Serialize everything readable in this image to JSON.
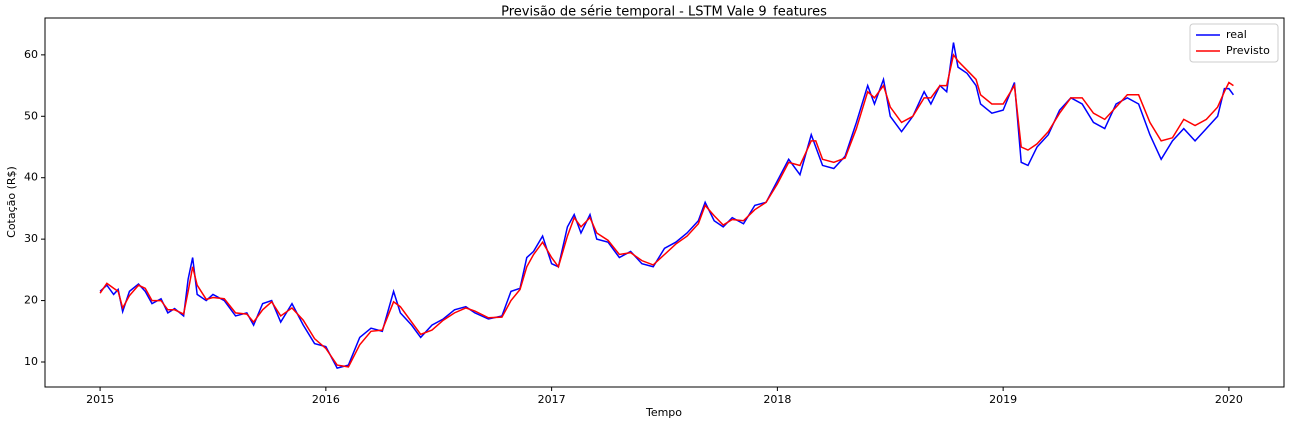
{
  "chart_data": {
    "type": "line",
    "title": "Previsão de série temporal - LSTM Vale 9_features",
    "x_label": "Tempo",
    "y_label": "Cotação (R$)",
    "x": [
      2015.0,
      2015.03,
      2015.06,
      2015.08,
      2015.1,
      2015.13,
      2015.17,
      2015.2,
      2015.23,
      2015.27,
      2015.3,
      2015.33,
      2015.37,
      2015.39,
      2015.41,
      2015.43,
      2015.47,
      2015.5,
      2015.55,
      2015.6,
      2015.65,
      2015.68,
      2015.72,
      2015.76,
      2015.8,
      2015.85,
      2015.9,
      2015.95,
      2016.0,
      2016.05,
      2016.1,
      2016.15,
      2016.2,
      2016.25,
      2016.3,
      2016.33,
      2016.38,
      2016.42,
      2016.47,
      2016.52,
      2016.57,
      2016.62,
      2016.66,
      2016.72,
      2016.78,
      2016.82,
      2016.86,
      2016.89,
      2016.92,
      2016.96,
      2017.0,
      2017.03,
      2017.07,
      2017.1,
      2017.13,
      2017.17,
      2017.2,
      2017.25,
      2017.3,
      2017.35,
      2017.4,
      2017.45,
      2017.5,
      2017.55,
      2017.6,
      2017.65,
      2017.68,
      2017.72,
      2017.76,
      2017.8,
      2017.85,
      2017.9,
      2017.95,
      2018.0,
      2018.05,
      2018.1,
      2018.15,
      2018.17,
      2018.2,
      2018.25,
      2018.3,
      2018.35,
      2018.4,
      2018.43,
      2018.47,
      2018.5,
      2018.55,
      2018.6,
      2018.65,
      2018.68,
      2018.72,
      2018.75,
      2018.78,
      2018.8,
      2018.84,
      2018.88,
      2018.9,
      2018.95,
      2019.0,
      2019.05,
      2019.08,
      2019.11,
      2019.15,
      2019.2,
      2019.25,
      2019.3,
      2019.35,
      2019.4,
      2019.45,
      2019.5,
      2019.55,
      2019.6,
      2019.65,
      2019.7,
      2019.75,
      2019.8,
      2019.85,
      2019.9,
      2019.95,
      2019.98,
      2020.0,
      2020.02
    ],
    "series": [
      {
        "name": "real",
        "color": "#0000ff",
        "values": [
          21.5,
          22.5,
          21,
          21.8,
          18.2,
          21.5,
          22.7,
          21.5,
          19.5,
          20.3,
          18,
          18.7,
          17.5,
          23.5,
          27,
          21,
          20,
          21,
          20,
          17.5,
          18,
          16,
          19.5,
          20,
          16.5,
          19.5,
          16,
          13,
          12.5,
          9,
          9.5,
          14,
          15.5,
          15,
          21.5,
          18,
          16,
          14,
          16,
          17,
          18.5,
          19,
          18,
          17,
          17.5,
          21.5,
          22,
          27,
          28,
          30.5,
          26,
          25.5,
          32,
          34,
          31,
          34,
          30,
          29.5,
          27,
          28,
          26,
          25.5,
          28.5,
          29.5,
          31,
          33,
          36,
          33,
          32,
          33.5,
          32.5,
          35.5,
          36,
          39.5,
          43,
          40.5,
          47,
          45,
          42,
          41.5,
          43.5,
          49,
          55,
          52,
          56,
          50,
          47.5,
          50,
          54,
          52,
          55,
          54,
          62,
          58,
          57,
          55,
          52,
          50.5,
          51,
          55.5,
          42.5,
          42,
          45,
          47,
          51,
          53,
          52,
          49,
          48,
          52,
          53,
          52,
          47,
          43,
          46,
          48,
          46,
          48,
          50,
          54.5,
          54.5,
          53.5
        ]
      },
      {
        "name": "Previsto",
        "color": "#ff0000",
        "values": [
          21.2,
          22.8,
          22,
          21.5,
          18.8,
          20.8,
          22.5,
          22,
          20,
          20,
          18.5,
          18.5,
          17.8,
          21.5,
          25.5,
          22.5,
          20.2,
          20.5,
          20.3,
          18,
          17.8,
          16.5,
          18.5,
          19.8,
          17.5,
          18.8,
          16.8,
          13.8,
          12.2,
          9.5,
          9.2,
          12.8,
          15,
          15.2,
          19.8,
          19,
          16.5,
          14.5,
          15.2,
          16.8,
          18,
          18.8,
          18.3,
          17.2,
          17.3,
          20,
          21.8,
          25.5,
          27.5,
          29.5,
          27,
          25.5,
          30.5,
          33.5,
          32,
          33.5,
          31,
          29.8,
          27.5,
          27.8,
          26.5,
          25.8,
          27.5,
          29.2,
          30.5,
          32.5,
          35.5,
          33.8,
          32.3,
          33.2,
          33,
          34.8,
          36,
          39,
          42.5,
          42,
          46,
          46,
          43,
          42.5,
          43.2,
          48,
          54,
          53,
          55,
          51.5,
          49,
          50,
          53,
          53,
          55,
          55,
          60,
          59,
          57.5,
          56,
          53.5,
          52,
          52,
          55,
          45,
          44.5,
          45.5,
          47.5,
          50.5,
          53,
          53,
          50.5,
          49.5,
          51.5,
          53.5,
          53.5,
          49,
          46,
          46.5,
          49.5,
          48.5,
          49.5,
          51.5,
          54,
          55.5,
          55
        ]
      }
    ],
    "xlim": [
      2014.756,
      2020.244
    ],
    "ylim": [
      5.93,
      66.0
    ],
    "xticks": [
      2015,
      2016,
      2017,
      2018,
      2019,
      2020
    ],
    "yticks": [
      10,
      20,
      30,
      40,
      50,
      60
    ],
    "legend": "upper right"
  }
}
